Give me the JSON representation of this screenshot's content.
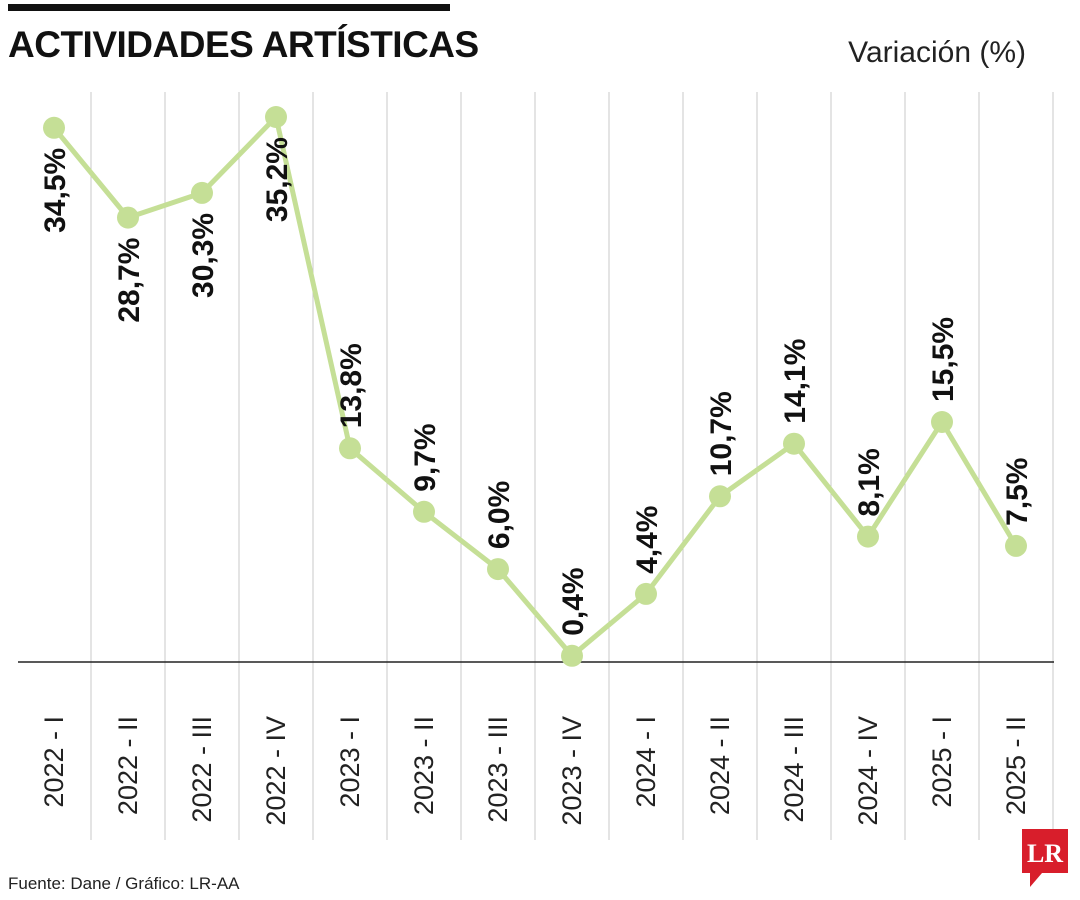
{
  "chart_data": {
    "type": "line",
    "title": "ACTIVIDADES ARTÍSTICAS",
    "ylabel": "Variación (%)",
    "xlabel": "",
    "categories": [
      "2022 - I",
      "2022 - II",
      "2022 - III",
      "2022 - IV",
      "2023 - I",
      "2023 - II",
      "2023 - III",
      "2023 - IV",
      "2024 - I",
      "2024 - II",
      "2024 - III",
      "2024 - IV",
      "2025 - I",
      "2025 - II"
    ],
    "values": [
      34.5,
      28.7,
      30.3,
      35.2,
      13.8,
      9.7,
      6.0,
      0.4,
      4.4,
      10.7,
      14.1,
      8.1,
      15.5,
      7.5
    ],
    "labels": [
      "34,5%",
      "28,7%",
      "30,3%",
      "35,2%",
      "13,8%",
      "9,7%",
      "6,0%",
      "0,4%",
      "4,4%",
      "10,7%",
      "14,1%",
      "8,1%",
      "15,5%",
      "7,5%"
    ],
    "ylim": [
      0,
      35.2
    ],
    "grid": true,
    "line_color": "#c5df96"
  },
  "footer": {
    "source": "Fuente: Dane / Gráfico: LR-AA"
  },
  "logo": {
    "text": "LR",
    "color": "#d81e2b"
  }
}
